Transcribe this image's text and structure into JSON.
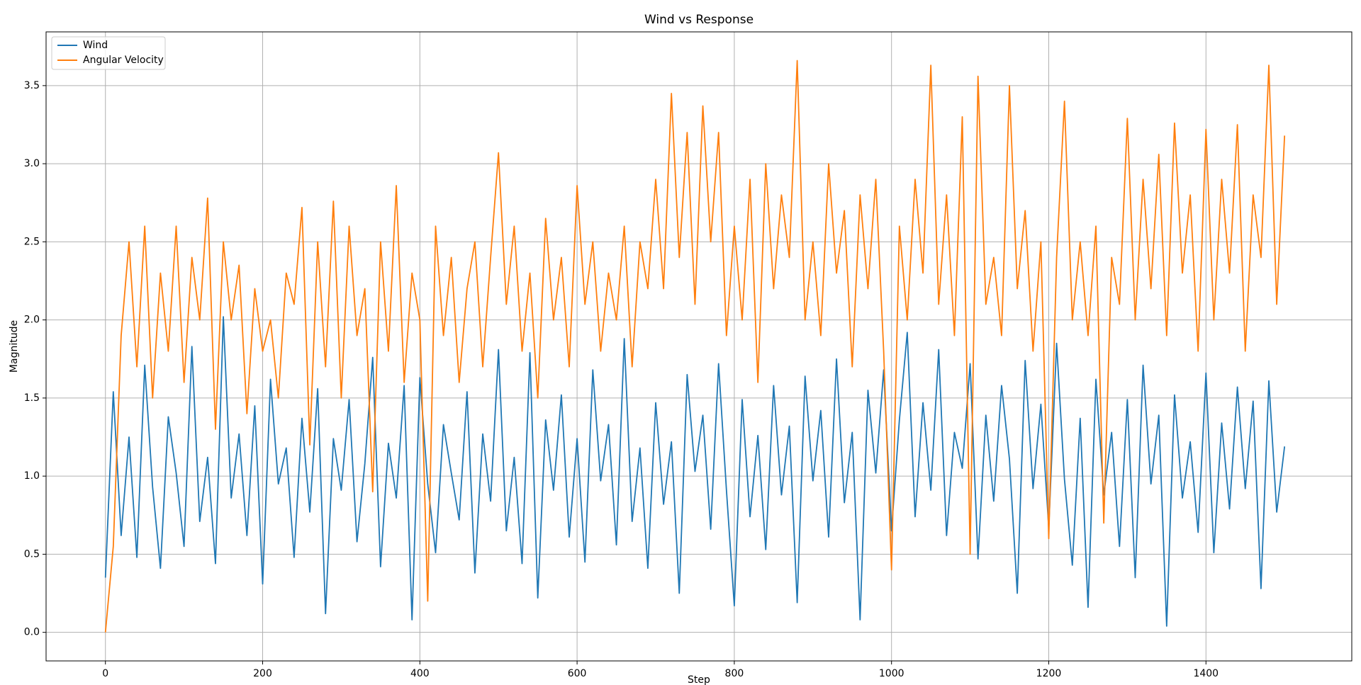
{
  "chart_data": {
    "type": "line",
    "title": "Wind vs Response",
    "x_label": "Step",
    "y_label": "Magnitude",
    "x": [
      0,
      10,
      20,
      30,
      40,
      50,
      60,
      70,
      80,
      90,
      100,
      110,
      120,
      130,
      140,
      150,
      160,
      170,
      180,
      190,
      200,
      210,
      220,
      230,
      240,
      250,
      260,
      270,
      280,
      290,
      300,
      310,
      320,
      330,
      340,
      350,
      360,
      370,
      380,
      390,
      400,
      410,
      420,
      430,
      440,
      450,
      460,
      470,
      480,
      490,
      500,
      510,
      520,
      530,
      540,
      550,
      560,
      570,
      580,
      590,
      600,
      610,
      620,
      630,
      640,
      650,
      660,
      670,
      680,
      690,
      700,
      710,
      720,
      730,
      740,
      750,
      760,
      770,
      780,
      790,
      800,
      810,
      820,
      830,
      840,
      850,
      860,
      870,
      880,
      890,
      900,
      910,
      920,
      930,
      940,
      950,
      960,
      970,
      980,
      990,
      1000,
      1010,
      1020,
      1030,
      1040,
      1050,
      1060,
      1070,
      1080,
      1090,
      1100,
      1110,
      1120,
      1130,
      1140,
      1150,
      1160,
      1170,
      1180,
      1190,
      1200,
      1210,
      1220,
      1230,
      1240,
      1250,
      1260,
      1270,
      1280,
      1290,
      1300,
      1310,
      1320,
      1330,
      1340,
      1350,
      1360,
      1370,
      1380,
      1390,
      1400,
      1410,
      1420,
      1430,
      1440,
      1450,
      1460,
      1470,
      1480,
      1490,
      1500
    ],
    "series": [
      {
        "name": "Wind",
        "color": "#1f77b4",
        "values": [
          0.35,
          1.54,
          0.62,
          1.25,
          0.48,
          1.71,
          0.93,
          0.41,
          1.38,
          1.02,
          0.55,
          1.83,
          0.71,
          1.12,
          0.44,
          2.02,
          0.86,
          1.27,
          0.62,
          1.45,
          0.31,
          1.62,
          0.95,
          1.18,
          0.48,
          1.37,
          0.77,
          1.56,
          0.12,
          1.24,
          0.91,
          1.49,
          0.58,
          1.08,
          1.76,
          0.42,
          1.21,
          0.86,
          1.58,
          0.08,
          1.63,
          0.95,
          0.51,
          1.33,
          1.02,
          0.72,
          1.54,
          0.38,
          1.27,
          0.84,
          1.81,
          0.65,
          1.12,
          0.44,
          1.79,
          0.22,
          1.36,
          0.91,
          1.52,
          0.61,
          1.24,
          0.45,
          1.68,
          0.97,
          1.33,
          0.56,
          1.88,
          0.71,
          1.18,
          0.41,
          1.47,
          0.82,
          1.22,
          0.25,
          1.65,
          1.03,
          1.39,
          0.66,
          1.72,
          0.91,
          0.17,
          1.49,
          0.74,
          1.26,
          0.53,
          1.58,
          0.88,
          1.32,
          0.19,
          1.64,
          0.97,
          1.42,
          0.61,
          1.75,
          0.83,
          1.28,
          0.08,
          1.55,
          1.02,
          1.68,
          0.65,
          1.36,
          1.92,
          0.74,
          1.47,
          0.91,
          1.81,
          0.62,
          1.28,
          1.05,
          1.72,
          0.47,
          1.39,
          0.84,
          1.58,
          1.11,
          0.25,
          1.74,
          0.92,
          1.46,
          0.67,
          1.85,
          0.98,
          0.43,
          1.37,
          0.16,
          1.62,
          0.88,
          1.28,
          0.55,
          1.49,
          0.35,
          1.71,
          0.95,
          1.39,
          0.04,
          1.52,
          0.86,
          1.22,
          0.64,
          1.66,
          0.51,
          1.34,
          0.79,
          1.57,
          0.92,
          1.48,
          0.28,
          1.61,
          0.77,
          1.19
        ]
      },
      {
        "name": "Angular Velocity",
        "color": "#ff7f0e",
        "values": [
          0,
          0.55,
          1.9,
          2.5,
          1.7,
          2.6,
          1.5,
          2.3,
          1.8,
          2.6,
          1.6,
          2.4,
          2.0,
          2.78,
          1.3,
          2.5,
          2.0,
          2.35,
          1.4,
          2.2,
          1.8,
          2.0,
          1.5,
          2.3,
          2.1,
          2.72,
          1.2,
          2.5,
          1.7,
          2.76,
          1.5,
          2.6,
          1.9,
          2.2,
          0.9,
          2.5,
          1.8,
          2.86,
          1.6,
          2.3,
          2.0,
          0.2,
          2.6,
          1.9,
          2.4,
          1.6,
          2.2,
          2.5,
          1.7,
          2.4,
          3.07,
          2.1,
          2.6,
          1.8,
          2.3,
          1.5,
          2.65,
          2.0,
          2.4,
          1.7,
          2.86,
          2.1,
          2.5,
          1.8,
          2.3,
          2.0,
          2.6,
          1.7,
          2.5,
          2.2,
          2.9,
          2.2,
          3.45,
          2.4,
          3.2,
          2.1,
          3.37,
          2.5,
          3.2,
          1.9,
          2.6,
          2.0,
          2.9,
          1.6,
          3.0,
          2.2,
          2.8,
          2.4,
          3.66,
          2.0,
          2.5,
          1.9,
          3.0,
          2.3,
          2.7,
          1.7,
          2.8,
          2.2,
          2.9,
          1.8,
          0.4,
          2.6,
          2.0,
          2.9,
          2.3,
          3.63,
          2.1,
          2.8,
          1.9,
          3.3,
          0.5,
          3.56,
          2.1,
          2.4,
          1.9,
          3.5,
          2.2,
          2.7,
          1.8,
          2.5,
          0.6,
          2.4,
          3.4,
          2.0,
          2.5,
          1.9,
          2.6,
          0.7,
          2.4,
          2.1,
          3.29,
          2.0,
          2.9,
          2.2,
          3.06,
          1.9,
          3.26,
          2.3,
          2.8,
          1.8,
          3.22,
          2.0,
          2.9,
          2.3,
          3.25,
          1.8,
          2.8,
          2.4,
          3.63,
          2.1,
          3.18
        ]
      }
    ],
    "xlim": [
      -75.5,
      1585.5
    ],
    "ylim": [
      -0.183,
      3.844
    ],
    "xticks": [
      0,
      200,
      400,
      600,
      800,
      1000,
      1200,
      1400
    ],
    "yticks": [
      {
        "value": 0,
        "label": "0.0"
      },
      0.5,
      {
        "value": 1,
        "label": "1.0"
      },
      1.5,
      {
        "value": 2,
        "label": "2.0"
      },
      2.5,
      {
        "value": 3,
        "label": "3.0"
      },
      3.5
    ],
    "grid": true,
    "legend": "upper left"
  }
}
